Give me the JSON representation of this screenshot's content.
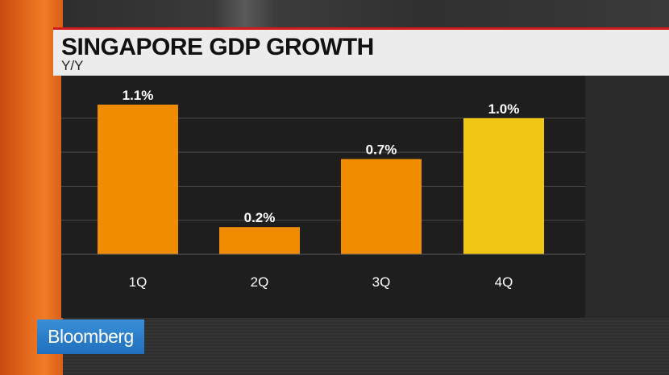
{
  "header": {
    "title": "SINGAPORE GDP GROWTH",
    "subtitle": "Y/Y"
  },
  "logo": {
    "text": "Bloomberg"
  },
  "colors": {
    "accent_red": "#d11a1a",
    "bar_orange": "#f08c00",
    "bar_highlight": "#f2c614",
    "logo_blue": "#2a7fcc"
  },
  "chart_data": {
    "type": "bar",
    "title": "SINGAPORE GDP GROWTH",
    "subtitle": "Y/Y",
    "categories": [
      "1Q",
      "2Q",
      "3Q",
      "4Q"
    ],
    "values": [
      1.1,
      0.2,
      0.7,
      1.0
    ],
    "data_labels": [
      "1.1%",
      "0.2%",
      "0.7%",
      "1.0%"
    ],
    "highlight_index": 3,
    "ylim": [
      0,
      1.1
    ],
    "grid": true,
    "xlabel": "",
    "ylabel": ""
  }
}
